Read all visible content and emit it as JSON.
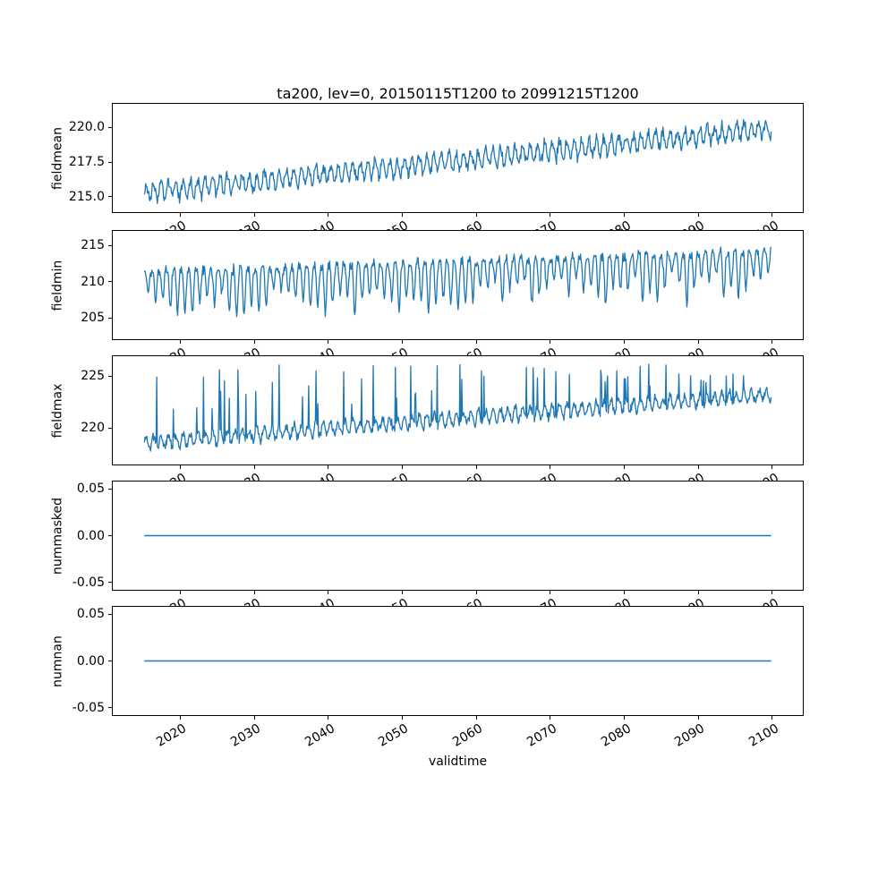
{
  "title": "ta200, lev=0, 20150115T1200 to 20991215T1200",
  "xlabel": "validtime",
  "line_color": "#1f77b4",
  "xlim": [
    2010.75,
    2104.25
  ],
  "x_ticks": {
    "values": [
      2020,
      2030,
      2040,
      2050,
      2060,
      2070,
      2080,
      2090,
      2100
    ],
    "labels": [
      "2020",
      "2030",
      "2040",
      "2050",
      "2060",
      "2070",
      "2080",
      "2090",
      "2100"
    ]
  },
  "chart_data": [
    {
      "type": "line",
      "ylabel": "fieldmean",
      "ylim": [
        213.9,
        221.7
      ],
      "ytick_values": [
        215.0,
        217.5,
        220.0
      ],
      "ytick_labels": [
        "215.0",
        "217.5",
        "220.0"
      ],
      "x_range": [
        2015.04,
        2099.96
      ],
      "series": [
        {
          "name": "fieldmean",
          "kind": "trend_noise",
          "x_start": 2015.04,
          "x_end": 2099.96,
          "n": 1020,
          "start": 215.3,
          "end": 219.9,
          "noise": 0.5,
          "seasonal": 0.6,
          "seed": 3
        }
      ]
    },
    {
      "type": "line",
      "ylabel": "fieldmin",
      "ylim": [
        202.1,
        217.0
      ],
      "ytick_values": [
        205,
        210,
        215
      ],
      "ytick_labels": [
        "205",
        "210",
        "215"
      ],
      "x_range": [
        2015.04,
        2099.96
      ],
      "series": [
        {
          "name": "fieldmin",
          "kind": "seasonal_dips",
          "x_start": 2015.04,
          "x_end": 2099.96,
          "n": 1020,
          "top_start": 211.3,
          "top_end": 214.3,
          "period": 12,
          "sharpness": 2,
          "dip_min": 2.5,
          "dip_max": 7.0,
          "noise": 0.9,
          "seed": 7
        }
      ]
    },
    {
      "type": "line",
      "ylabel": "fieldmax",
      "ylim": [
        216.5,
        226.9
      ],
      "ytick_values": [
        220,
        225
      ],
      "ytick_labels": [
        "220",
        "225"
      ],
      "x_range": [
        2015.04,
        2099.96
      ],
      "series": [
        {
          "name": "fieldmax",
          "kind": "trend_noise_spikes",
          "x_start": 2015.04,
          "x_end": 2099.96,
          "n": 1020,
          "start": 218.6,
          "end": 223.2,
          "noise": 0.5,
          "seasonal": 0.6,
          "spike_prob": 0.07,
          "spike_top": 226.2,
          "seed": 11
        }
      ]
    },
    {
      "type": "line",
      "ylabel": "nummasked",
      "ylim": [
        -0.058,
        0.058
      ],
      "ytick_values": [
        -0.05,
        0.0,
        0.05
      ],
      "ytick_labels": [
        "-0.05",
        "0.00",
        "0.05"
      ],
      "x_range": [
        2015.04,
        2099.96
      ],
      "series": [
        {
          "name": "nummasked",
          "kind": "constant",
          "x_start": 2015.04,
          "x_end": 2099.96,
          "n": 2,
          "value": 0,
          "seed": 1
        }
      ]
    },
    {
      "type": "line",
      "ylabel": "numnan",
      "ylim": [
        -0.058,
        0.058
      ],
      "ytick_values": [
        -0.05,
        0.0,
        0.05
      ],
      "ytick_labels": [
        "-0.05",
        "0.00",
        "0.05"
      ],
      "x_range": [
        2015.04,
        2099.96
      ],
      "series": [
        {
          "name": "numnan",
          "kind": "constant",
          "x_start": 2015.04,
          "x_end": 2099.96,
          "n": 2,
          "value": 0,
          "seed": 1
        }
      ]
    }
  ]
}
